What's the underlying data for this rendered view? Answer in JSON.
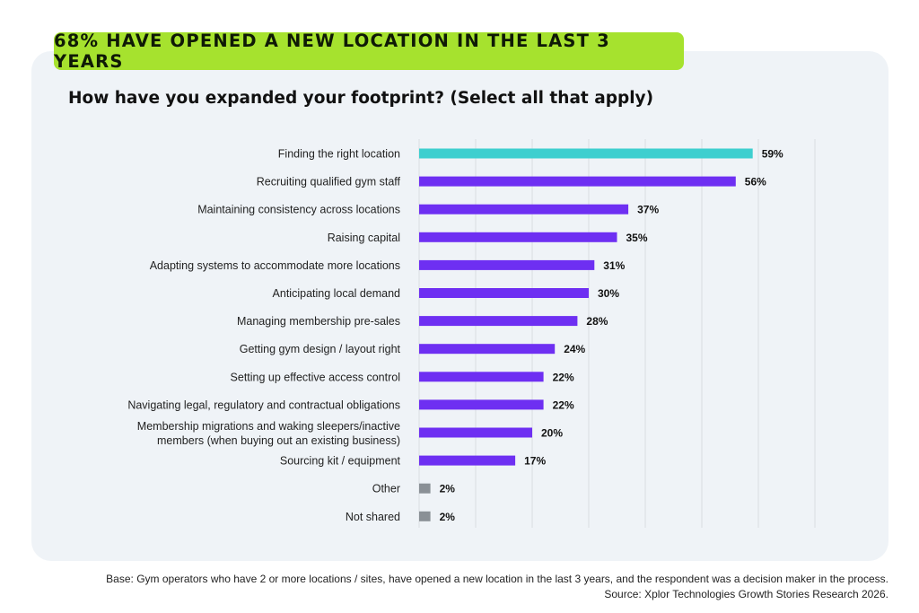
{
  "banner": {
    "text": "68% HAVE OPENED A NEW LOCATION IN THE LAST 3 YEARS"
  },
  "colors": {
    "banner": "#a6e22e",
    "panel": "#eff3f7",
    "highlight": "#3ecfcf",
    "primary": "#6e2ff2",
    "neutral": "#8a9096"
  },
  "chart_data": {
    "type": "bar",
    "orientation": "horizontal",
    "title": "How have you expanded your footprint? (Select all that apply)",
    "xlim": [
      0,
      70
    ],
    "grid": true,
    "categories": [
      "Finding the right location",
      "Recruiting qualified gym staff",
      "Maintaining consistency across locations",
      "Raising capital",
      "Adapting systems to accommodate more locations",
      "Anticipating local demand",
      "Managing membership pre-sales",
      "Getting gym design / layout right",
      "Setting up effective access control",
      "Navigating legal, regulatory and contractual obligations",
      [
        "Membership migrations and waking sleepers/inactive",
        "members (when buying out an existing business)"
      ],
      "Sourcing kit / equipment",
      "Other",
      "Not shared"
    ],
    "values": [
      59,
      56,
      37,
      35,
      31,
      30,
      28,
      24,
      22,
      22,
      20,
      17,
      2,
      2
    ],
    "value_labels": [
      "59%",
      "56%",
      "37%",
      "35%",
      "31%",
      "30%",
      "28%",
      "24%",
      "22%",
      "22%",
      "20%",
      "17%",
      "2%",
      "2%"
    ],
    "bar_colors": [
      "highlight",
      "primary",
      "primary",
      "primary",
      "primary",
      "primary",
      "primary",
      "primary",
      "primary",
      "primary",
      "primary",
      "primary",
      "neutral",
      "neutral"
    ]
  },
  "footnote": {
    "base": "Base: Gym operators who have 2 or more locations / sites, have opened a new location in the last 3 years, and the respondent was a decision maker in the process.",
    "source": "Source: Xplor Technologies Growth Stories Research 2026."
  }
}
